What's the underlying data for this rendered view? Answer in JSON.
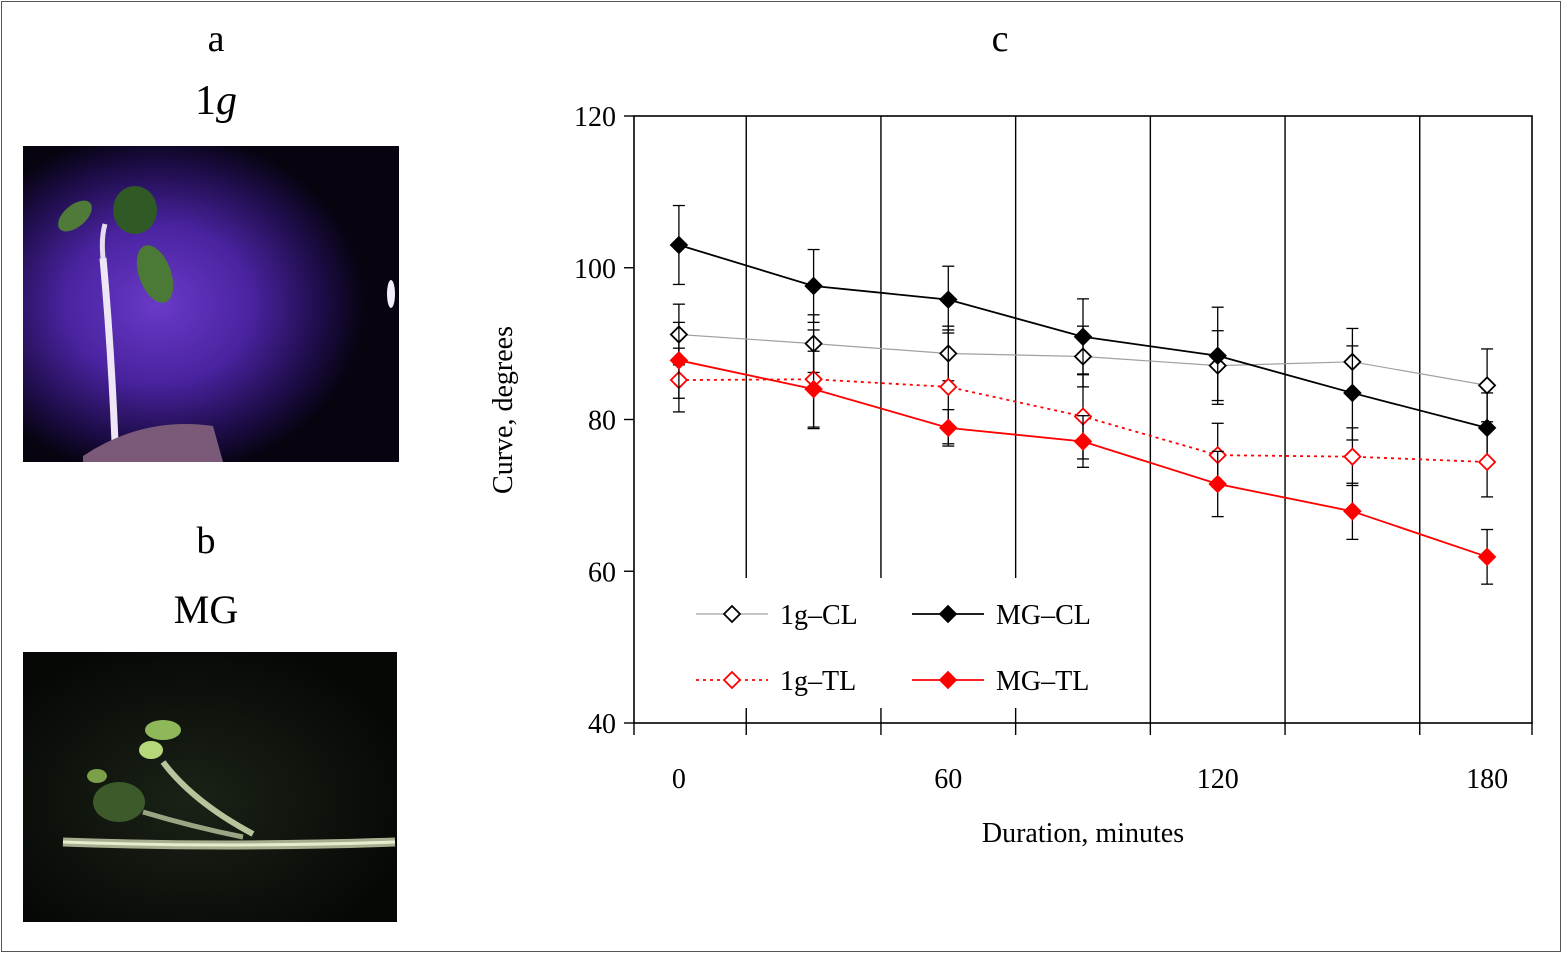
{
  "panels": {
    "a": {
      "letter": "a",
      "condition_main": "1",
      "condition_italic": "g"
    },
    "b": {
      "letter": "b",
      "condition": "MG"
    },
    "c": {
      "letter": "c"
    }
  },
  "chart_data": {
    "type": "line",
    "title": "",
    "xlabel": "Duration, minutes",
    "ylabel": "Curve, degrees",
    "xlim": [
      -10,
      190
    ],
    "ylim": [
      40,
      120
    ],
    "xticks": [
      0,
      60,
      120,
      180
    ],
    "yticks": [
      40,
      60,
      80,
      100,
      120
    ],
    "x": [
      0,
      30,
      60,
      90,
      120,
      150,
      180
    ],
    "series": [
      {
        "name": "1g–CL",
        "color": "#a0a0a0",
        "marker_color": "#000000",
        "marker": "open-diamond",
        "dash": "",
        "values": [
          91.2,
          90.0,
          88.7,
          88.3,
          87.1,
          87.6,
          84.5
        ],
        "errors": [
          4.0,
          3.8,
          3.6,
          4.0,
          4.6,
          4.4,
          4.8
        ]
      },
      {
        "name": "MG–CL",
        "color": "#000000",
        "marker_color": "#000000",
        "marker": "filled-diamond",
        "dash": "",
        "values": [
          103.0,
          97.6,
          95.8,
          90.9,
          88.4,
          83.5,
          78.9
        ],
        "errors": [
          5.2,
          4.8,
          4.4,
          5.0,
          6.4,
          6.2,
          4.6
        ]
      },
      {
        "name": "1g–TL",
        "color": "#ff0000",
        "marker_color": "#ff0000",
        "marker": "open-diamond",
        "dash": "3,4",
        "values": [
          85.2,
          85.3,
          84.3,
          80.4,
          75.3,
          75.1,
          74.4
        ],
        "errors": [
          4.2,
          6.5,
          7.5,
          5.6,
          4.2,
          3.8,
          4.6
        ]
      },
      {
        "name": "MG–TL",
        "color": "#ff0000",
        "marker_color": "#ff0000",
        "marker": "filled-diamond",
        "dash": "",
        "values": [
          87.8,
          84.0,
          78.9,
          77.1,
          71.5,
          67.9,
          61.9
        ],
        "errors": [
          5.0,
          5.0,
          2.4,
          3.4,
          4.3,
          3.7,
          3.6
        ]
      }
    ],
    "vertical_lines_x": [
      15,
      45,
      75,
      105,
      135,
      165
    ],
    "legend_position": "bottom-left",
    "grid": false
  }
}
